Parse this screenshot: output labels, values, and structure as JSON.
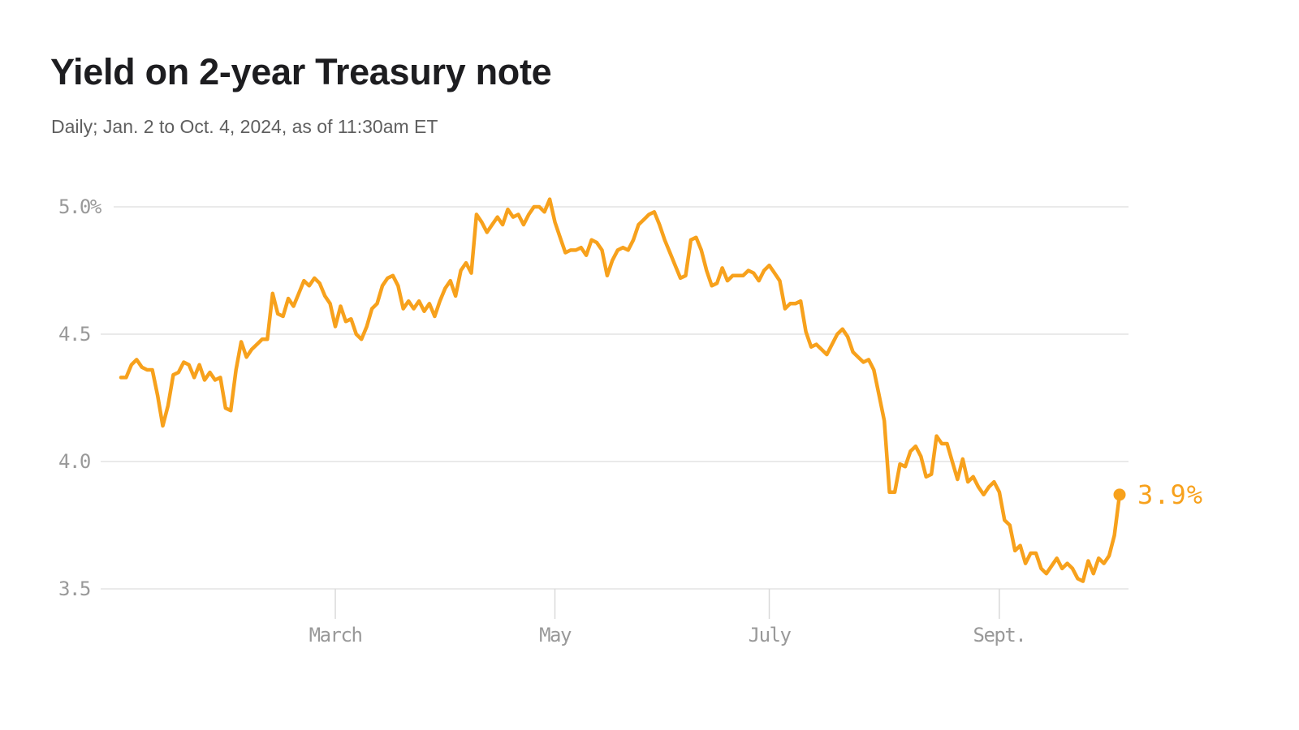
{
  "page": {
    "background": "#FFFFFF"
  },
  "chart_data": {
    "type": "line",
    "title": "Yield on 2-year Treasury note",
    "subtitle": "Daily; Jan. 2 to Oct. 4, 2024, as of 11:30am ET",
    "unit": "percent",
    "grid": true,
    "legend": "none",
    "end_label": "3.9%",
    "y_axis": {
      "tick_labels": [
        "5.0%",
        "4.5",
        "4.0",
        "3.5"
      ],
      "tick_values": [
        5.0,
        4.5,
        4.0,
        3.5
      ],
      "range_shown": [
        3.5,
        5.05
      ]
    },
    "x_axis": {
      "tick_labels": [
        "March",
        "May",
        "July",
        "Sept."
      ],
      "tick_indices": [
        41,
        83,
        124,
        168
      ]
    },
    "series": [
      {
        "name": "2-year Treasury note yield",
        "dates": [
          "2024-01-02",
          "2024-01-03",
          "2024-01-04",
          "2024-01-05",
          "2024-01-08",
          "2024-01-09",
          "2024-01-10",
          "2024-01-11",
          "2024-01-12",
          "2024-01-16",
          "2024-01-17",
          "2024-01-18",
          "2024-01-19",
          "2024-01-22",
          "2024-01-23",
          "2024-01-24",
          "2024-01-25",
          "2024-01-26",
          "2024-01-29",
          "2024-01-30",
          "2024-01-31",
          "2024-02-01",
          "2024-02-02",
          "2024-02-05",
          "2024-02-06",
          "2024-02-07",
          "2024-02-08",
          "2024-02-09",
          "2024-02-12",
          "2024-02-13",
          "2024-02-14",
          "2024-02-15",
          "2024-02-16",
          "2024-02-20",
          "2024-02-21",
          "2024-02-22",
          "2024-02-23",
          "2024-02-26",
          "2024-02-27",
          "2024-02-28",
          "2024-02-29",
          "2024-03-01",
          "2024-03-04",
          "2024-03-05",
          "2024-03-06",
          "2024-03-07",
          "2024-03-08",
          "2024-03-11",
          "2024-03-12",
          "2024-03-13",
          "2024-03-14",
          "2024-03-15",
          "2024-03-18",
          "2024-03-19",
          "2024-03-20",
          "2024-03-21",
          "2024-03-22",
          "2024-03-25",
          "2024-03-26",
          "2024-03-27",
          "2024-03-28",
          "2024-04-01",
          "2024-04-02",
          "2024-04-03",
          "2024-04-04",
          "2024-04-05",
          "2024-04-08",
          "2024-04-09",
          "2024-04-10",
          "2024-04-11",
          "2024-04-12",
          "2024-04-15",
          "2024-04-16",
          "2024-04-17",
          "2024-04-18",
          "2024-04-19",
          "2024-04-22",
          "2024-04-23",
          "2024-04-24",
          "2024-04-25",
          "2024-04-26",
          "2024-04-29",
          "2024-04-30",
          "2024-05-01",
          "2024-05-02",
          "2024-05-03",
          "2024-05-06",
          "2024-05-07",
          "2024-05-08",
          "2024-05-09",
          "2024-05-10",
          "2024-05-13",
          "2024-05-14",
          "2024-05-15",
          "2024-05-16",
          "2024-05-17",
          "2024-05-20",
          "2024-05-21",
          "2024-05-22",
          "2024-05-23",
          "2024-05-24",
          "2024-05-28",
          "2024-05-29",
          "2024-05-30",
          "2024-05-31",
          "2024-06-03",
          "2024-06-04",
          "2024-06-05",
          "2024-06-06",
          "2024-06-07",
          "2024-06-10",
          "2024-06-11",
          "2024-06-12",
          "2024-06-13",
          "2024-06-14",
          "2024-06-17",
          "2024-06-18",
          "2024-06-20",
          "2024-06-21",
          "2024-06-24",
          "2024-06-25",
          "2024-06-26",
          "2024-06-27",
          "2024-06-28",
          "2024-07-01",
          "2024-07-02",
          "2024-07-03",
          "2024-07-05",
          "2024-07-08",
          "2024-07-09",
          "2024-07-10",
          "2024-07-11",
          "2024-07-12",
          "2024-07-15",
          "2024-07-16",
          "2024-07-17",
          "2024-07-18",
          "2024-07-19",
          "2024-07-22",
          "2024-07-23",
          "2024-07-24",
          "2024-07-25",
          "2024-07-26",
          "2024-07-29",
          "2024-07-30",
          "2024-07-31",
          "2024-08-01",
          "2024-08-02",
          "2024-08-05",
          "2024-08-06",
          "2024-08-07",
          "2024-08-08",
          "2024-08-09",
          "2024-08-12",
          "2024-08-13",
          "2024-08-14",
          "2024-08-15",
          "2024-08-16",
          "2024-08-19",
          "2024-08-20",
          "2024-08-21",
          "2024-08-22",
          "2024-08-23",
          "2024-08-26",
          "2024-08-27",
          "2024-08-28",
          "2024-08-29",
          "2024-08-30",
          "2024-09-03",
          "2024-09-04",
          "2024-09-05",
          "2024-09-06",
          "2024-09-09",
          "2024-09-10",
          "2024-09-11",
          "2024-09-12",
          "2024-09-13",
          "2024-09-16",
          "2024-09-17",
          "2024-09-18",
          "2024-09-19",
          "2024-09-20",
          "2024-09-23",
          "2024-09-24",
          "2024-09-25",
          "2024-09-26",
          "2024-09-27",
          "2024-09-30",
          "2024-10-01",
          "2024-10-02",
          "2024-10-03",
          "2024-10-04"
        ],
        "values": [
          4.33,
          4.33,
          4.38,
          4.4,
          4.37,
          4.36,
          4.36,
          4.26,
          4.14,
          4.22,
          4.34,
          4.35,
          4.39,
          4.38,
          4.33,
          4.38,
          4.32,
          4.35,
          4.32,
          4.33,
          4.21,
          4.2,
          4.36,
          4.47,
          4.41,
          4.44,
          4.46,
          4.48,
          4.48,
          4.66,
          4.58,
          4.57,
          4.64,
          4.61,
          4.66,
          4.71,
          4.69,
          4.72,
          4.7,
          4.65,
          4.62,
          4.53,
          4.61,
          4.55,
          4.56,
          4.5,
          4.48,
          4.53,
          4.6,
          4.62,
          4.69,
          4.72,
          4.73,
          4.69,
          4.6,
          4.63,
          4.6,
          4.63,
          4.59,
          4.62,
          4.57,
          4.63,
          4.68,
          4.71,
          4.65,
          4.75,
          4.78,
          4.74,
          4.97,
          4.94,
          4.9,
          4.93,
          4.96,
          4.93,
          4.99,
          4.96,
          4.97,
          4.93,
          4.97,
          5.0,
          5.0,
          4.98,
          5.03,
          4.94,
          4.88,
          4.82,
          4.83,
          4.83,
          4.84,
          4.81,
          4.87,
          4.86,
          4.83,
          4.73,
          4.79,
          4.83,
          4.84,
          4.83,
          4.87,
          4.93,
          4.95,
          4.97,
          4.98,
          4.93,
          4.87,
          4.82,
          4.77,
          4.72,
          4.73,
          4.87,
          4.88,
          4.83,
          4.75,
          4.69,
          4.7,
          4.76,
          4.71,
          4.73,
          4.73,
          4.73,
          4.75,
          4.74,
          4.71,
          4.75,
          4.77,
          4.74,
          4.71,
          4.6,
          4.62,
          4.62,
          4.63,
          4.51,
          4.45,
          4.46,
          4.44,
          4.42,
          4.46,
          4.5,
          4.52,
          4.49,
          4.43,
          4.41,
          4.39,
          4.4,
          4.36,
          4.26,
          4.16,
          3.88,
          3.88,
          3.99,
          3.98,
          4.04,
          4.06,
          4.02,
          3.94,
          3.95,
          4.1,
          4.07,
          4.07,
          4.0,
          3.93,
          4.01,
          3.92,
          3.94,
          3.9,
          3.87,
          3.9,
          3.92,
          3.88,
          3.77,
          3.75,
          3.65,
          3.67,
          3.6,
          3.64,
          3.64,
          3.58,
          3.56,
          3.59,
          3.62,
          3.58,
          3.6,
          3.58,
          3.54,
          3.53,
          3.61,
          3.56,
          3.62,
          3.6,
          3.63,
          3.71,
          3.87
        ]
      }
    ],
    "colors": {
      "line": "#F7A11C",
      "end_dot": "#F7A11C",
      "end_label": "#F7A11C",
      "gridline": "#E3E3E3",
      "tick_mark": "#D9D9D9",
      "axis_text": "#999999",
      "title_text": "#1D1D20",
      "subtitle_text": "#5F5F5F",
      "background": "#FFFFFF"
    }
  }
}
